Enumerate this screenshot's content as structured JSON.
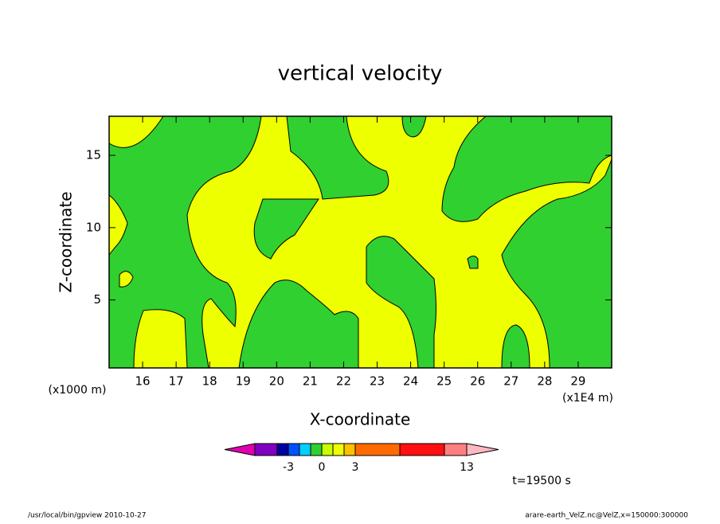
{
  "chart_data": {
    "type": "contour",
    "title": "vertical velocity",
    "xlabel": "X-coordinate",
    "ylabel": "Z-coordinate",
    "x_unit": "(x1E4 m)",
    "y_unit": "(x1000 m)",
    "xlim": [
      15,
      30
    ],
    "xticks": [
      16,
      17,
      18,
      19,
      20,
      21,
      22,
      23,
      24,
      25,
      26,
      27,
      28,
      29
    ],
    "ylim": [
      0.3,
      17.7
    ],
    "yticks": [
      5,
      10,
      15
    ],
    "colorbar": {
      "levels": [
        -6,
        -4,
        -3,
        -2,
        -1,
        0,
        1,
        2,
        3,
        7,
        11,
        13
      ],
      "colors": [
        "#8000c0",
        "#0000a0",
        "#0050ff",
        "#00d0ff",
        "#30d030",
        "#c8ff00",
        "#eeff00",
        "#ffc000",
        "#ff6a00",
        "#ff1010",
        "#ff8080"
      ],
      "under_color": "#e000b0",
      "over_color": "#ffb8c0",
      "ticks": [
        -3,
        0,
        3,
        13
      ]
    },
    "annotation": "t=19500 s"
  },
  "footer": {
    "left": "/usr/local/bin/gpview  2010-10-27",
    "right": "arare-earth_VelZ.nc@VelZ,x=150000:300000"
  }
}
